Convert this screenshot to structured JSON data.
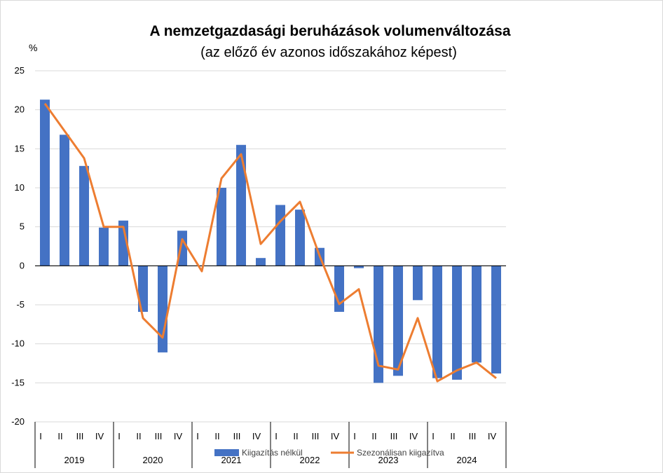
{
  "chart_data": {
    "type": "bar",
    "title": "A nemzetgazdasági beruházások volumenváltozása",
    "subtitle": "(az előző év azonos időszakához képest)",
    "ylabel": "%",
    "ylim": [
      -20,
      25
    ],
    "yticks": [
      25,
      20,
      15,
      10,
      5,
      0,
      -5,
      -10,
      -15,
      -20
    ],
    "grid": true,
    "legend_position": "bottom",
    "categories": [
      "I",
      "II",
      "III",
      "IV",
      "I",
      "II",
      "III",
      "IV",
      "I",
      "II",
      "III",
      "IV",
      "I",
      "II",
      "III",
      "IV",
      "I",
      "II",
      "III",
      "IV",
      "I",
      "II",
      "III",
      "IV"
    ],
    "years": [
      "2019",
      "2020",
      "2021",
      "2022",
      "2023",
      "2024"
    ],
    "series": [
      {
        "name": "Kiigazítás nélkül",
        "type": "bar",
        "color": "#4472c4",
        "values": [
          21.3,
          16.8,
          12.8,
          4.9,
          5.8,
          -5.9,
          -11.1,
          4.5,
          0.0,
          10.0,
          15.5,
          1.0,
          7.8,
          7.2,
          2.3,
          -5.9,
          -0.3,
          -15.0,
          -14.1,
          -4.4,
          -14.4,
          -14.6,
          -12.4,
          -13.8
        ]
      },
      {
        "name": "Szezonálisan kiigazítva",
        "type": "line",
        "color": "#ed7d31",
        "values": [
          20.8,
          17.3,
          13.8,
          5.0,
          5.0,
          -6.7,
          -9.2,
          3.4,
          -0.7,
          11.2,
          14.3,
          2.8,
          5.7,
          8.2,
          1.3,
          -4.9,
          -3.0,
          -12.8,
          -13.3,
          -6.7,
          -14.8,
          -13.4,
          -12.4,
          -14.4
        ]
      }
    ]
  }
}
